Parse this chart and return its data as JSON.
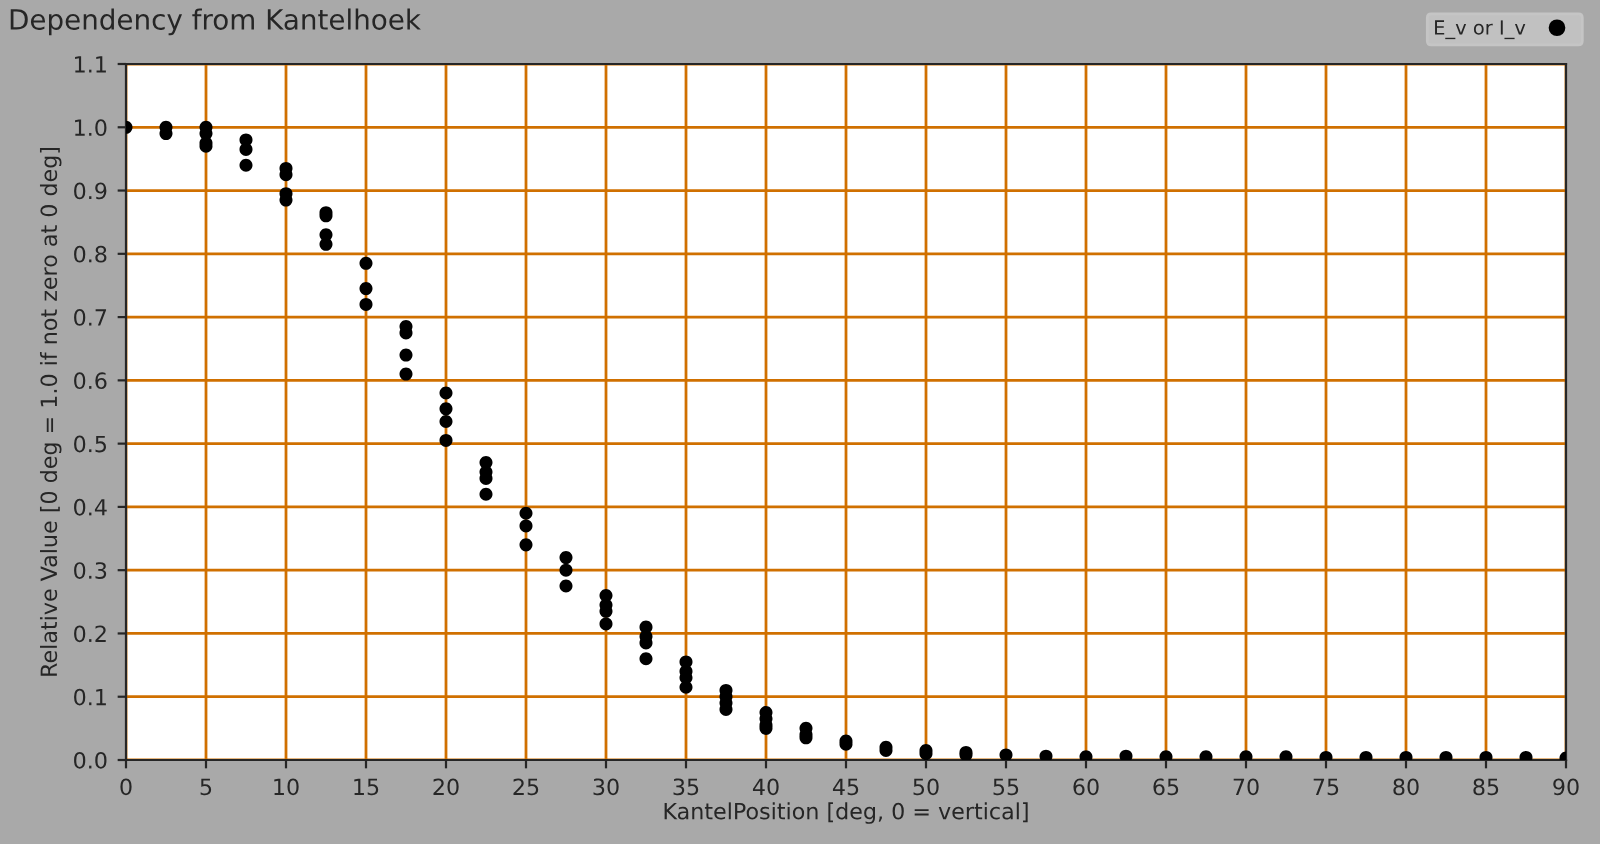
{
  "chart_data": {
    "type": "scatter",
    "title": "Dependency from Kantelhoek",
    "xlabel": "KantelPosition [deg, 0 = vertical]",
    "ylabel": "Relative Value [0 deg = 1.0 if not zero at 0 deg]",
    "series": [
      {
        "name": "E_v or I_v",
        "color": "#000000",
        "x": [
          0,
          2.5,
          2.5,
          5,
          5,
          5,
          5,
          7.5,
          7.5,
          7.5,
          10,
          10,
          10,
          10,
          12.5,
          12.5,
          12.5,
          12.5,
          15,
          15,
          15,
          17.5,
          17.5,
          17.5,
          17.5,
          20,
          20,
          20,
          20,
          22.5,
          22.5,
          22.5,
          22.5,
          25,
          25,
          25,
          27.5,
          27.5,
          27.5,
          30,
          30,
          30,
          30,
          32.5,
          32.5,
          32.5,
          32.5,
          35,
          35,
          35,
          35,
          37.5,
          37.5,
          37.5,
          37.5,
          40,
          40,
          40,
          40,
          42.5,
          42.5,
          42.5,
          45,
          45,
          47.5,
          47.5,
          50,
          50,
          52.5,
          52.5,
          55,
          57.5,
          60,
          62.5,
          65,
          67.5,
          70,
          72.5,
          75,
          77.5,
          80,
          82.5,
          85,
          87.5,
          90
        ],
        "values": [
          1.0,
          1.0,
          0.99,
          1.0,
          0.99,
          0.975,
          0.97,
          0.98,
          0.965,
          0.94,
          0.935,
          0.925,
          0.895,
          0.885,
          0.865,
          0.86,
          0.83,
          0.815,
          0.785,
          0.745,
          0.72,
          0.685,
          0.675,
          0.64,
          0.61,
          0.58,
          0.555,
          0.535,
          0.505,
          0.47,
          0.455,
          0.445,
          0.42,
          0.39,
          0.37,
          0.34,
          0.32,
          0.3,
          0.275,
          0.26,
          0.245,
          0.235,
          0.215,
          0.21,
          0.195,
          0.185,
          0.16,
          0.155,
          0.14,
          0.13,
          0.115,
          0.11,
          0.1,
          0.09,
          0.08,
          0.075,
          0.065,
          0.055,
          0.05,
          0.05,
          0.04,
          0.035,
          0.03,
          0.025,
          0.02,
          0.015,
          0.015,
          0.01,
          0.012,
          0.008,
          0.008,
          0.006,
          0.005,
          0.006,
          0.005,
          0.005,
          0.005,
          0.005,
          0.004,
          0.004,
          0.004,
          0.004,
          0.004,
          0.004,
          0.003
        ]
      }
    ],
    "xlim": [
      0,
      90
    ],
    "xticks": [
      0,
      5,
      10,
      15,
      20,
      25,
      30,
      35,
      40,
      45,
      50,
      55,
      60,
      65,
      70,
      75,
      80,
      85,
      90
    ],
    "ylim": [
      0,
      1.1
    ],
    "yticks": [
      {
        "value": 0,
        "label": "0.0"
      },
      0.1,
      0.2,
      0.3,
      0.4,
      0.5,
      0.6,
      0.7,
      0.8,
      0.9,
      {
        "value": 1.0,
        "label": "1.0"
      },
      1.1
    ],
    "grid": true,
    "legend": "top right",
    "marker": "circle"
  }
}
